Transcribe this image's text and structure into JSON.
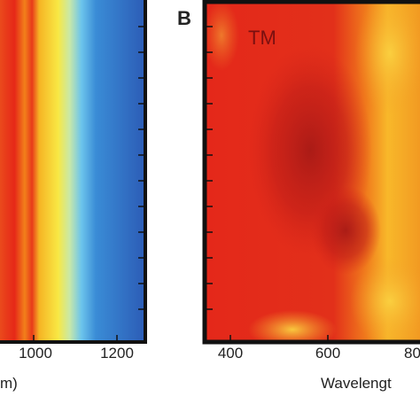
{
  "panels": [
    {
      "tick_labels": [
        "1000",
        "1200"
      ],
      "axis_label": "m)"
    },
    {
      "label": "B",
      "annotation": "TM",
      "tick_labels": [
        "400",
        "600",
        "80"
      ],
      "axis_label": "Wavelengt"
    }
  ]
}
